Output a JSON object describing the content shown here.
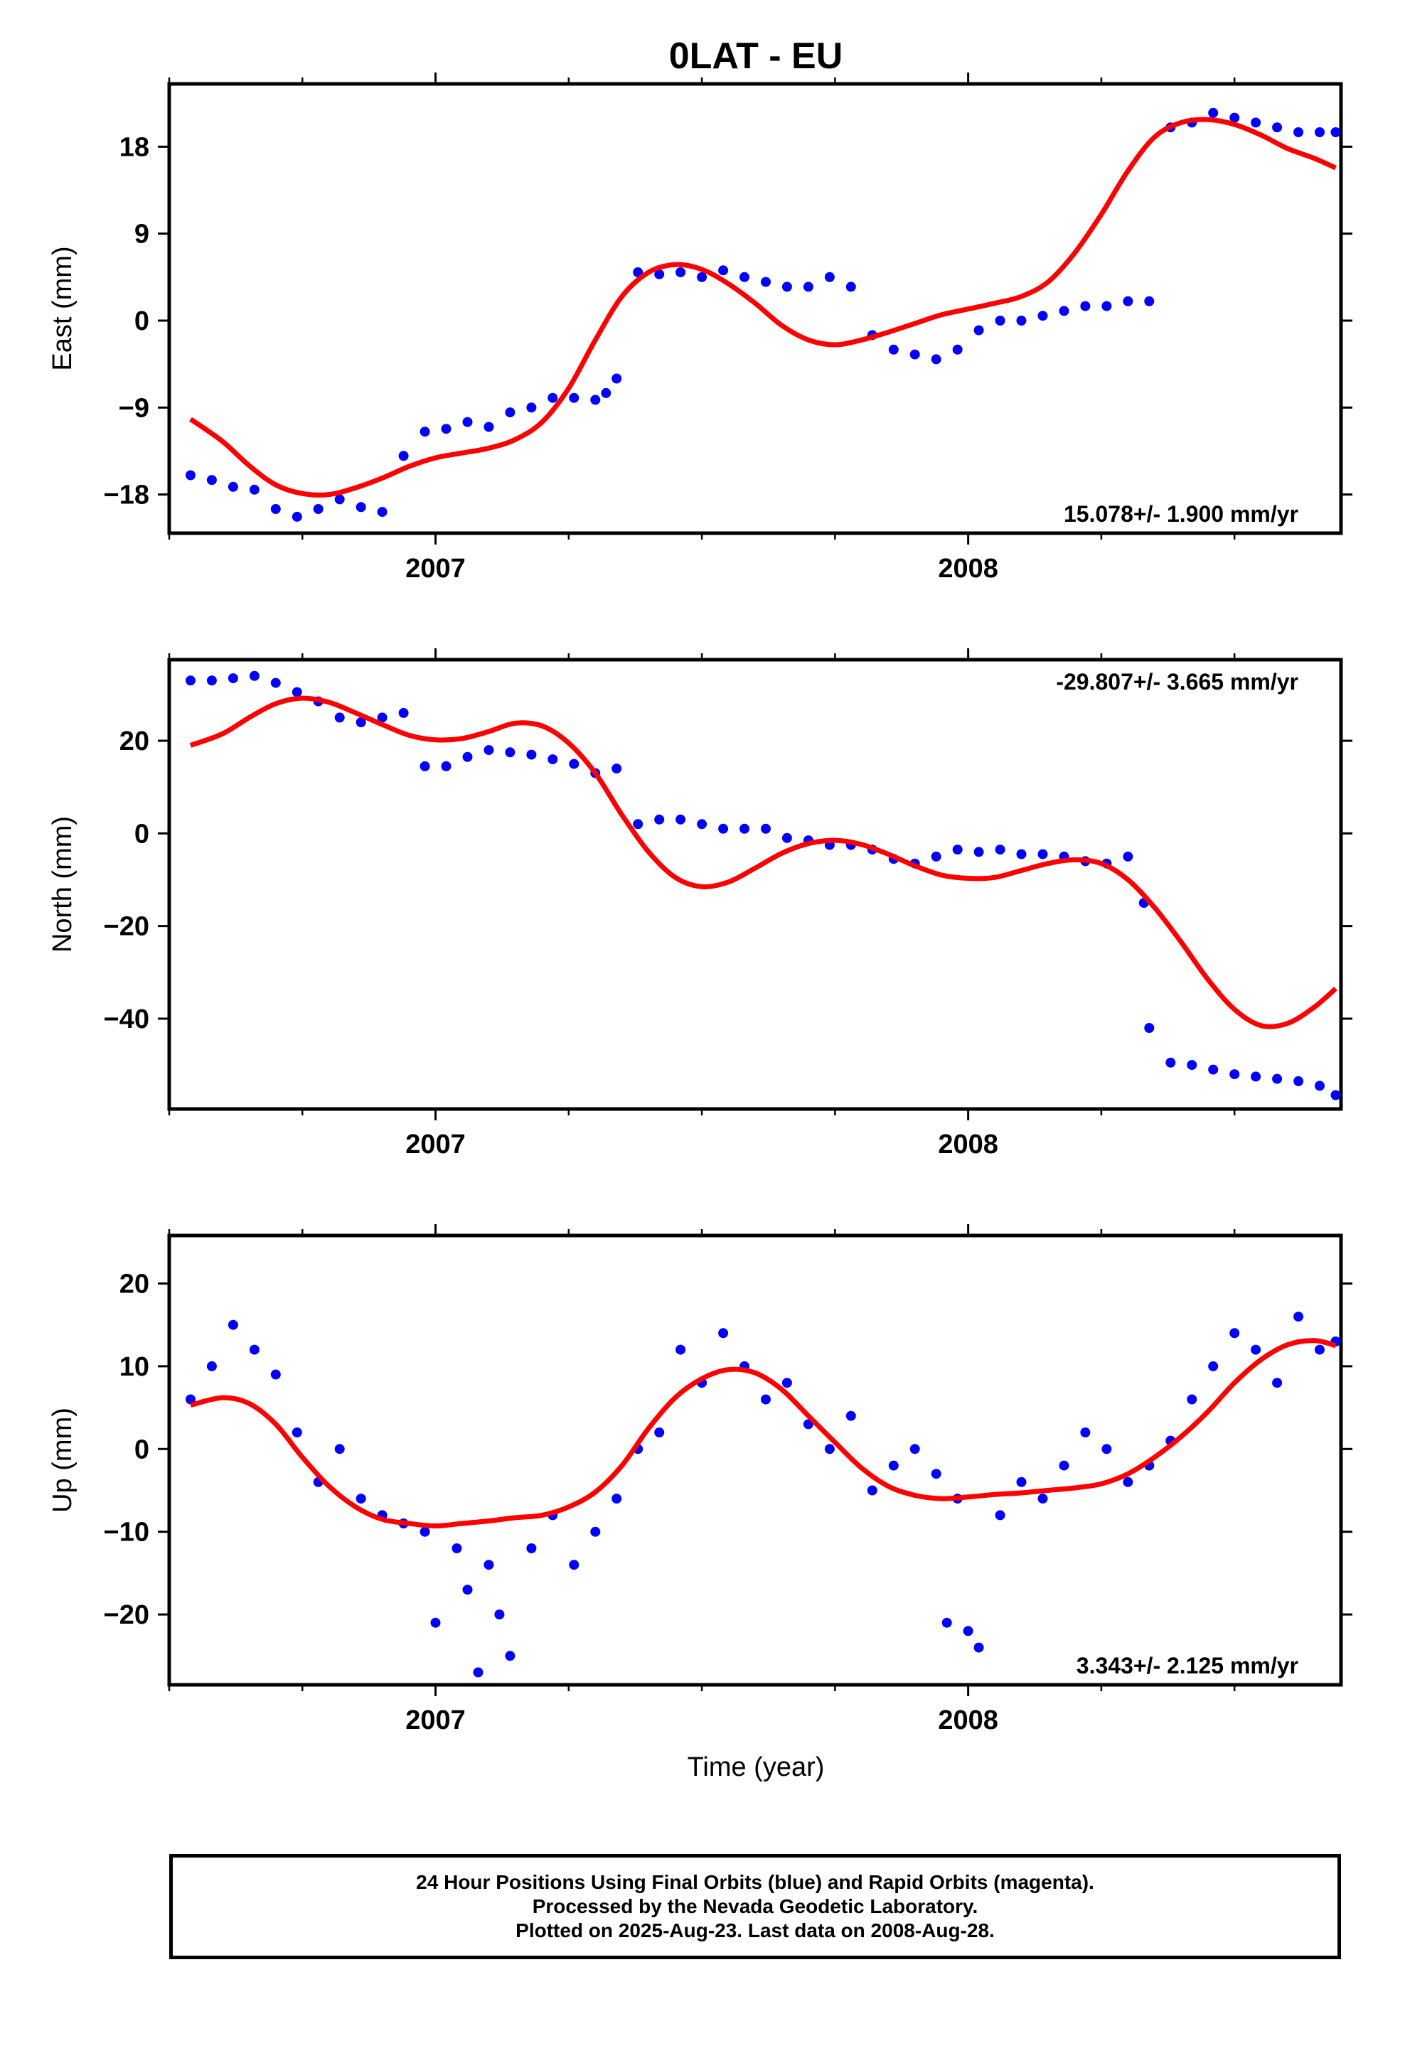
{
  "figure": {
    "title": "0LAT - EU",
    "xlabel": "Time (year)"
  },
  "footer": {
    "lines": [
      "24 Hour Positions Using Final Orbits (blue) and Rapid Orbits (magenta).",
      "Processed by the Nevada Geodetic Laboratory.",
      "Plotted on 2025-Aug-23. Last data on 2008-Aug-28."
    ]
  },
  "colors": {
    "points": "#0000ff",
    "fit": "#ff0000",
    "frame": "#000000"
  },
  "chart_data": [
    {
      "type": "scatter",
      "ylabel": "East (mm)",
      "rate_label": "15.078+/- 1.900 mm/yr",
      "rate_position": "bottom-right",
      "xlim": [
        2006.5,
        2008.7
      ],
      "ylim": [
        -22,
        24.5
      ],
      "yticks": [
        -18,
        -9,
        0,
        9,
        18
      ],
      "ytick_labels": [
        "−18",
        "−9",
        "0",
        "9",
        "18"
      ],
      "xticks_major": [
        2007,
        2008
      ],
      "xtick_labels": [
        "2007",
        "2008"
      ],
      "xticks_minor": [
        2006.5,
        2006.75,
        2007.25,
        2007.5,
        2007.75,
        2008.25,
        2008.5
      ],
      "grid": false,
      "series": [
        {
          "role": "observations",
          "x": [
            2006.54,
            2006.58,
            2006.62,
            2006.66,
            2006.7,
            2006.74,
            2006.78,
            2006.82,
            2006.86,
            2006.9,
            2006.94,
            2006.98,
            2007.02,
            2007.06,
            2007.1,
            2007.14,
            2007.18,
            2007.22,
            2007.26,
            2007.3,
            2007.32,
            2007.34,
            2007.38,
            2007.42,
            2007.46,
            2007.5,
            2007.54,
            2007.58,
            2007.62,
            2007.66,
            2007.7,
            2007.74,
            2007.78,
            2007.82,
            2007.86,
            2007.9,
            2007.94,
            2007.98,
            2008.02,
            2008.06,
            2008.1,
            2008.14,
            2008.18,
            2008.22,
            2008.26,
            2008.3,
            2008.34,
            2008.38,
            2008.42,
            2008.46,
            2008.5,
            2008.54,
            2008.58,
            2008.62,
            2008.66,
            2008.69
          ],
          "y": [
            -16,
            -16.5,
            -17.2,
            -17.5,
            -19.5,
            -20.3,
            -19.5,
            -18.5,
            -19.3,
            -19.8,
            -14,
            -11.5,
            -11.2,
            -10.5,
            -11,
            -9.5,
            -9,
            -8,
            -8,
            -8.2,
            -7.5,
            -6,
            5,
            4.8,
            5,
            4.5,
            5.2,
            4.5,
            4,
            3.5,
            3.5,
            4.5,
            3.5,
            -1.5,
            -3,
            -3.5,
            -4,
            -3,
            -1,
            0,
            0,
            0.5,
            1,
            1.5,
            1.5,
            2,
            2,
            20,
            20.5,
            21.5,
            21,
            20.5,
            20,
            19.5,
            19.5,
            19.5
          ]
        },
        {
          "role": "fit",
          "x": [
            2006.54,
            2006.6,
            2006.65,
            2006.7,
            2006.75,
            2006.8,
            2006.85,
            2006.9,
            2006.95,
            2007.0,
            2007.05,
            2007.1,
            2007.15,
            2007.2,
            2007.25,
            2007.3,
            2007.35,
            2007.4,
            2007.45,
            2007.5,
            2007.55,
            2007.6,
            2007.65,
            2007.7,
            2007.75,
            2007.8,
            2007.85,
            2007.9,
            2007.95,
            2008.0,
            2008.05,
            2008.1,
            2008.15,
            2008.2,
            2008.25,
            2008.3,
            2008.35,
            2008.4,
            2008.45,
            2008.5,
            2008.55,
            2008.6,
            2008.65,
            2008.69
          ],
          "y": [
            -10.2,
            -12.5,
            -15,
            -17,
            -17.9,
            -18.0,
            -17.3,
            -16.3,
            -15.1,
            -14.2,
            -13.7,
            -13.2,
            -12.3,
            -10.5,
            -7,
            -2,
            2.5,
            5,
            5.8,
            5.3,
            3.8,
            1.8,
            -0.5,
            -2,
            -2.5,
            -2,
            -1.2,
            -0.3,
            0.6,
            1.2,
            1.8,
            2.5,
            4,
            7,
            11,
            15.5,
            19,
            20.5,
            20.8,
            20.3,
            19.2,
            17.8,
            16.8,
            15.8
          ]
        }
      ]
    },
    {
      "type": "scatter",
      "ylabel": "North (mm)",
      "rate_label": "-29.807+/- 3.665 mm/yr",
      "rate_position": "top-right",
      "xlim": [
        2006.5,
        2008.7
      ],
      "ylim": [
        -59.5,
        37.5
      ],
      "yticks": [
        -40,
        -20,
        0,
        20
      ],
      "ytick_labels": [
        "−40",
        "−20",
        "0",
        "20"
      ],
      "xticks_major": [
        2007,
        2008
      ],
      "xtick_labels": [
        "2007",
        "2008"
      ],
      "xticks_minor": [
        2006.5,
        2006.75,
        2007.25,
        2007.5,
        2007.75,
        2008.25,
        2008.5
      ],
      "grid": false,
      "series": [
        {
          "role": "observations",
          "x": [
            2006.54,
            2006.58,
            2006.62,
            2006.66,
            2006.7,
            2006.74,
            2006.78,
            2006.82,
            2006.86,
            2006.9,
            2006.94,
            2006.98,
            2007.02,
            2007.06,
            2007.1,
            2007.14,
            2007.18,
            2007.22,
            2007.26,
            2007.3,
            2007.34,
            2007.38,
            2007.42,
            2007.46,
            2007.5,
            2007.54,
            2007.58,
            2007.62,
            2007.66,
            2007.7,
            2007.74,
            2007.78,
            2007.82,
            2007.86,
            2007.9,
            2007.94,
            2007.98,
            2008.02,
            2008.06,
            2008.1,
            2008.14,
            2008.18,
            2008.22,
            2008.26,
            2008.3,
            2008.33,
            2008.34,
            2008.38,
            2008.42,
            2008.46,
            2008.5,
            2008.54,
            2008.58,
            2008.62,
            2008.66,
            2008.69
          ],
          "y": [
            33,
            33,
            33.5,
            34,
            32.5,
            30.5,
            28.5,
            25,
            24,
            25,
            26,
            14.5,
            14.5,
            16.5,
            18,
            17.5,
            17,
            16,
            15,
            13,
            14,
            2,
            3,
            3,
            2,
            1,
            1,
            1,
            -1,
            -1.5,
            -2.5,
            -2.5,
            -3.5,
            -5.5,
            -6.5,
            -5,
            -3.5,
            -4,
            -3.5,
            -4.5,
            -4.5,
            -5,
            -6,
            -6.5,
            -5,
            -15,
            -42,
            -49.5,
            -50,
            -51,
            -52,
            -52.5,
            -53,
            -53.5,
            -54.5,
            -56.5
          ]
        },
        {
          "role": "fit",
          "x": [
            2006.54,
            2006.6,
            2006.65,
            2006.7,
            2006.75,
            2006.8,
            2006.85,
            2006.9,
            2006.95,
            2007.0,
            2007.05,
            2007.1,
            2007.15,
            2007.2,
            2007.25,
            2007.3,
            2007.35,
            2007.4,
            2007.45,
            2007.5,
            2007.55,
            2007.6,
            2007.65,
            2007.7,
            2007.75,
            2007.8,
            2007.85,
            2007.9,
            2007.95,
            2008.0,
            2008.05,
            2008.1,
            2008.15,
            2008.2,
            2008.25,
            2008.3,
            2008.35,
            2008.4,
            2008.45,
            2008.5,
            2008.55,
            2008.6,
            2008.65,
            2008.69
          ],
          "y": [
            19,
            21.5,
            25,
            28,
            29.2,
            28.3,
            26,
            23.5,
            21.2,
            20.2,
            20.5,
            22,
            23.8,
            23.2,
            19.5,
            13,
            4,
            -4,
            -9.5,
            -11.5,
            -10.5,
            -7.5,
            -4.3,
            -2.2,
            -1.5,
            -2.4,
            -4.5,
            -7,
            -9,
            -9.7,
            -9.5,
            -8,
            -6.5,
            -5.7,
            -6.5,
            -10,
            -16,
            -23.5,
            -31.5,
            -38,
            -41.5,
            -41,
            -37.5,
            -33.5
          ]
        }
      ]
    },
    {
      "type": "scatter",
      "ylabel": "Up (mm)",
      "rate_label": "3.343+/- 2.125 mm/yr",
      "rate_position": "bottom-right",
      "xlim": [
        2006.5,
        2008.7
      ],
      "ylim": [
        -28.5,
        25.8
      ],
      "yticks": [
        -20,
        -10,
        0,
        10,
        20
      ],
      "ytick_labels": [
        "−20",
        "−10",
        "0",
        "10",
        "20"
      ],
      "xticks_major": [
        2007,
        2008
      ],
      "xtick_labels": [
        "2007",
        "2008"
      ],
      "xticks_minor": [
        2006.5,
        2006.75,
        2007.25,
        2007.5,
        2007.75,
        2008.25,
        2008.5
      ],
      "grid": false,
      "series": [
        {
          "role": "observations",
          "x": [
            2006.54,
            2006.58,
            2006.62,
            2006.66,
            2006.7,
            2006.74,
            2006.78,
            2006.82,
            2006.86,
            2006.9,
            2006.94,
            2006.98,
            2007.0,
            2007.04,
            2007.06,
            2007.08,
            2007.1,
            2007.12,
            2007.14,
            2007.18,
            2007.22,
            2007.26,
            2007.3,
            2007.34,
            2007.38,
            2007.42,
            2007.46,
            2007.5,
            2007.54,
            2007.58,
            2007.62,
            2007.66,
            2007.7,
            2007.74,
            2007.78,
            2007.82,
            2007.86,
            2007.9,
            2007.94,
            2007.96,
            2007.98,
            2008.0,
            2008.02,
            2008.06,
            2008.1,
            2008.14,
            2008.18,
            2008.22,
            2008.26,
            2008.3,
            2008.34,
            2008.38,
            2008.42,
            2008.46,
            2008.5,
            2008.54,
            2008.58,
            2008.62,
            2008.66,
            2008.69
          ],
          "y": [
            6,
            10,
            15,
            12,
            9,
            2,
            -4,
            0,
            -6,
            -8,
            -9,
            -10,
            -21,
            -12,
            -17,
            -27,
            -14,
            -20,
            -25,
            -12,
            -8,
            -14,
            -10,
            -6,
            0,
            2,
            12,
            8,
            14,
            10,
            6,
            8,
            3,
            0,
            4,
            -5,
            -2,
            0,
            -3,
            -21,
            -6,
            -22,
            -24,
            -8,
            -4,
            -6,
            -2,
            2,
            0,
            -4,
            -2,
            1,
            6,
            10,
            14,
            12,
            8,
            16,
            12,
            13
          ]
        },
        {
          "role": "fit",
          "x": [
            2006.54,
            2006.6,
            2006.65,
            2006.7,
            2006.75,
            2006.8,
            2006.85,
            2006.9,
            2006.95,
            2007.0,
            2007.05,
            2007.1,
            2007.15,
            2007.2,
            2007.25,
            2007.3,
            2007.35,
            2007.4,
            2007.45,
            2007.5,
            2007.55,
            2007.6,
            2007.65,
            2007.7,
            2007.75,
            2007.8,
            2007.85,
            2007.9,
            2007.95,
            2008.0,
            2008.05,
            2008.1,
            2008.15,
            2008.2,
            2008.25,
            2008.3,
            2008.35,
            2008.4,
            2008.45,
            2008.5,
            2008.55,
            2008.6,
            2008.65,
            2008.69
          ],
          "y": [
            5.3,
            6.2,
            5.5,
            3,
            -1,
            -4.5,
            -7,
            -8.5,
            -9,
            -9.3,
            -9,
            -8.7,
            -8.3,
            -8,
            -7,
            -5.2,
            -2,
            2.5,
            6.2,
            8.5,
            9.6,
            9.2,
            7.2,
            4,
            0.8,
            -2.3,
            -4.5,
            -5.6,
            -6,
            -5.8,
            -5.5,
            -5.3,
            -5,
            -4.7,
            -4.2,
            -3,
            -1,
            1.5,
            4.5,
            8,
            10.8,
            12.6,
            13.1,
            12.5
          ]
        }
      ]
    }
  ]
}
